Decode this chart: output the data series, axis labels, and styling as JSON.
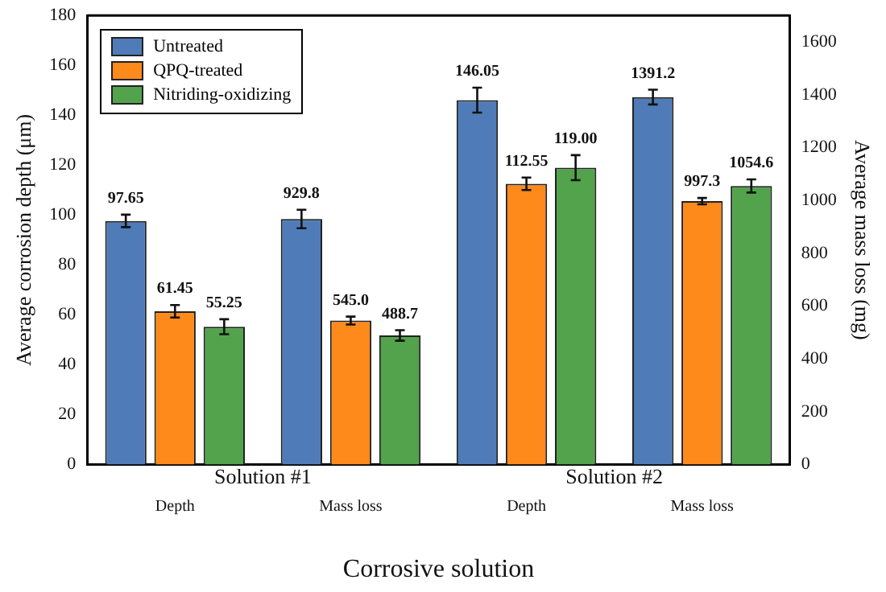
{
  "chart_data": {
    "type": "bar",
    "categories": [
      "Depth",
      "Mass loss",
      "Depth",
      "Mass loss"
    ],
    "xlabel": "Corrosive solution",
    "ylabel": "Average corrosion depth (μm)",
    "y2label": "Average mass loss (mg)",
    "annotations": [
      "Solution #1",
      "Solution #2"
    ],
    "series": [
      {
        "name": "Untreated",
        "color": "#4f7cb8",
        "values": [
          97.65,
          null,
          146.05,
          null
        ],
        "errors": [
          2.5,
          null,
          5,
          null
        ],
        "value_labels": [
          "97.65",
          null,
          "146.05",
          null
        ]
      },
      {
        "name": "QPQ-treated",
        "color": "#ff8a1c",
        "values": [
          61.45,
          null,
          112.55,
          null
        ],
        "errors": [
          2.5,
          null,
          2.5,
          null
        ],
        "value_labels": [
          "61.45",
          null,
          "112.55",
          null
        ]
      },
      {
        "name": "Nitriding-oxidizing",
        "color": "#52a34c",
        "values": [
          55.25,
          null,
          119.0,
          null
        ],
        "errors": [
          3,
          null,
          5,
          null
        ],
        "value_labels": [
          "55.25",
          null,
          "119.00",
          null
        ]
      },
      {
        "color": "#4f7cb8",
        "axis": "y2",
        "values": [
          null,
          929.8,
          null,
          1391.2
        ],
        "errors": [
          null,
          35,
          null,
          28
        ],
        "value_labels": [
          null,
          "929.8",
          null,
          "1391.2"
        ]
      },
      {
        "color": "#ff8a1c",
        "axis": "y2",
        "values": [
          null,
          545.0,
          null,
          997.3
        ],
        "errors": [
          null,
          15,
          null,
          12
        ],
        "value_labels": [
          null,
          "545.0",
          null,
          "997.3"
        ]
      },
      {
        "color": "#52a34c",
        "axis": "y2",
        "values": [
          null,
          488.7,
          null,
          1054.6
        ],
        "errors": [
          null,
          20,
          null,
          25
        ],
        "value_labels": [
          null,
          "488.7",
          null,
          "1054.6"
        ]
      }
    ],
    "ylim": [
      0,
      180
    ],
    "yticks": [
      0,
      20,
      40,
      60,
      80,
      100,
      120,
      140,
      160,
      180
    ],
    "y2lim": [
      0,
      1700
    ],
    "y2ticks": [
      0,
      200,
      400,
      600,
      800,
      1000,
      1200,
      1400,
      1600
    ],
    "grid": false,
    "legend": "top left"
  }
}
